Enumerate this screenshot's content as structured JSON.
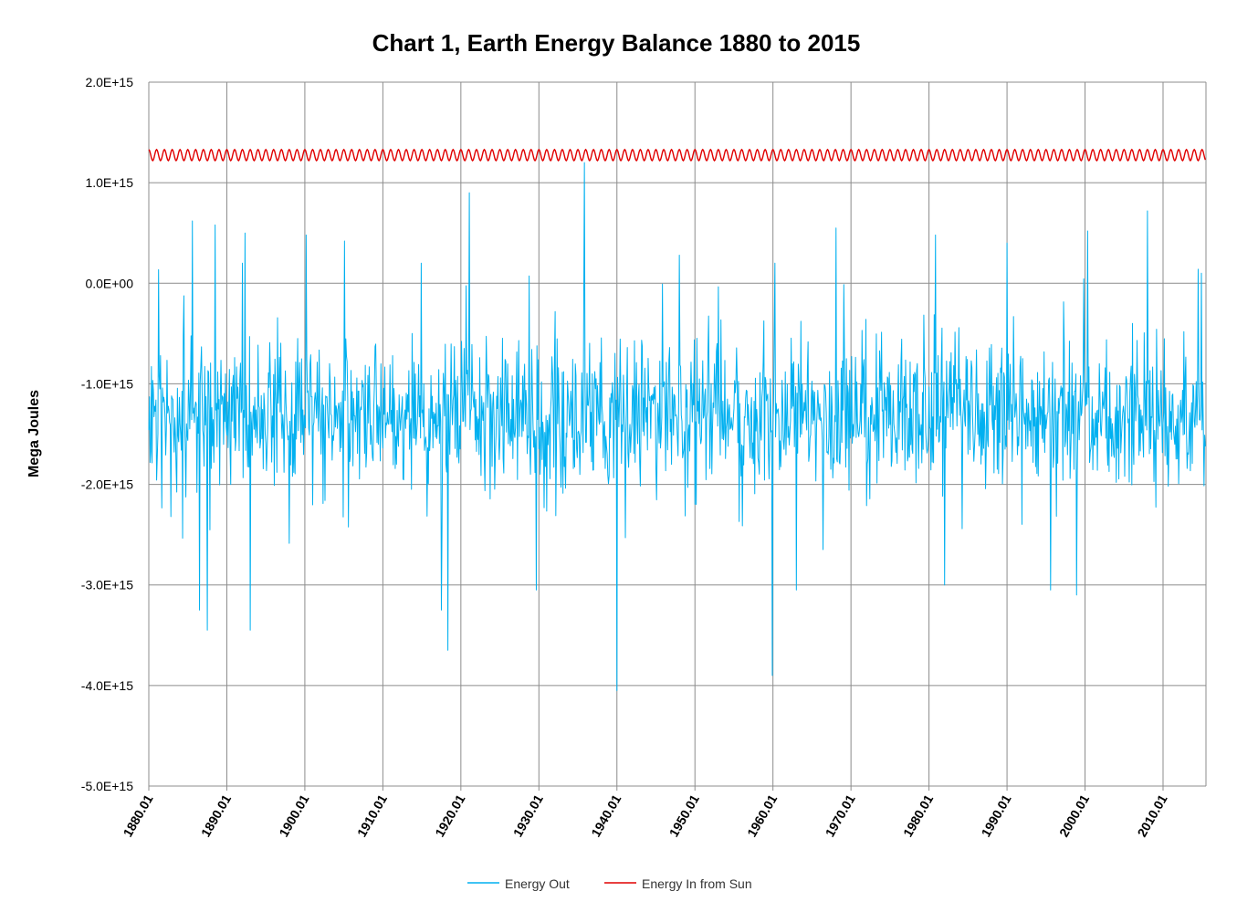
{
  "chart_data": {
    "type": "line",
    "title": "Chart 1, Earth Energy Balance 1880 to 2015",
    "xlabel": "",
    "ylabel": "Mega Joules",
    "x_range": [
      1880.0,
      2015.5
    ],
    "x_tick_values": [
      1880,
      1890,
      1900,
      1910,
      1920,
      1930,
      1940,
      1950,
      1960,
      1970,
      1980,
      1990,
      2000,
      2010
    ],
    "x_tick_labels": [
      "1880.01",
      "1890.01",
      "1900.01",
      "1910.01",
      "1920.01",
      "1930.01",
      "1940.01",
      "1950.01",
      "1960.01",
      "1970.01",
      "1980.01",
      "1990.01",
      "2000.01",
      "2010.01"
    ],
    "ylim": [
      -5000000000000000.0,
      2000000000000000.0
    ],
    "y_tick_values": [
      2000000000000000.0,
      1000000000000000.0,
      0,
      -1000000000000000.0,
      -2000000000000000.0,
      -3000000000000000.0,
      -4000000000000000.0,
      -5000000000000000.0
    ],
    "y_tick_labels": [
      "2.0E+15",
      "1.0E+15",
      "0.0E+00",
      "-1.0E+15",
      "-2.0E+15",
      "-3.0E+15",
      "-4.0E+15",
      "-5.0E+15"
    ],
    "grid": true,
    "legend_position": "bottom",
    "series": [
      {
        "name": "Energy Out",
        "color": "#00b0f0",
        "sampling": "monthly",
        "typical_mean": -1300000000000000.0,
        "typical_range": [
          -2200000000000000.0,
          -400000000000000.0
        ],
        "peaks": [
          {
            "x": 1885.6,
            "y": 620000000000000.0
          },
          {
            "x": 1888.5,
            "y": 580000000000000.0
          },
          {
            "x": 1892.3,
            "y": 500000000000000.0
          },
          {
            "x": 1900.2,
            "y": 480000000000000.0
          },
          {
            "x": 1905.1,
            "y": 420000000000000.0
          },
          {
            "x": 1921.1,
            "y": 900000000000000.0
          },
          {
            "x": 1935.8,
            "y": 1200000000000000.0
          },
          {
            "x": 1948.0,
            "y": 280000000000000.0
          },
          {
            "x": 1968.1,
            "y": 550000000000000.0
          },
          {
            "x": 1980.8,
            "y": 480000000000000.0
          },
          {
            "x": 1990.0,
            "y": 400000000000000.0
          },
          {
            "x": 2000.3,
            "y": 520000000000000.0
          },
          {
            "x": 2008.0,
            "y": 720000000000000.0
          },
          {
            "x": 2014.9,
            "y": 100000000000000.0
          }
        ],
        "troughs": [
          {
            "x": 1886.5,
            "y": -3250000000000000.0
          },
          {
            "x": 1887.5,
            "y": -3450000000000000.0
          },
          {
            "x": 1893.0,
            "y": -3450000000000000.0
          },
          {
            "x": 1917.5,
            "y": -3250000000000000.0
          },
          {
            "x": 1918.3,
            "y": -3650000000000000.0
          },
          {
            "x": 1929.7,
            "y": -3050000000000000.0
          },
          {
            "x": 1940.0,
            "y": -4050000000000000.0
          },
          {
            "x": 1959.9,
            "y": -3900000000000000.0
          },
          {
            "x": 1963.0,
            "y": -3050000000000000.0
          },
          {
            "x": 1982.0,
            "y": -3000000000000000.0
          },
          {
            "x": 1995.6,
            "y": -3050000000000000.0
          },
          {
            "x": 1998.9,
            "y": -3100000000000000.0
          }
        ]
      },
      {
        "name": "Energy In from Sun",
        "color": "#e00000",
        "sampling": "monthly",
        "seasonal_max": 1330000000000000.0,
        "seasonal_min": 1220000000000000.0,
        "cycle_years": 1
      }
    ]
  }
}
